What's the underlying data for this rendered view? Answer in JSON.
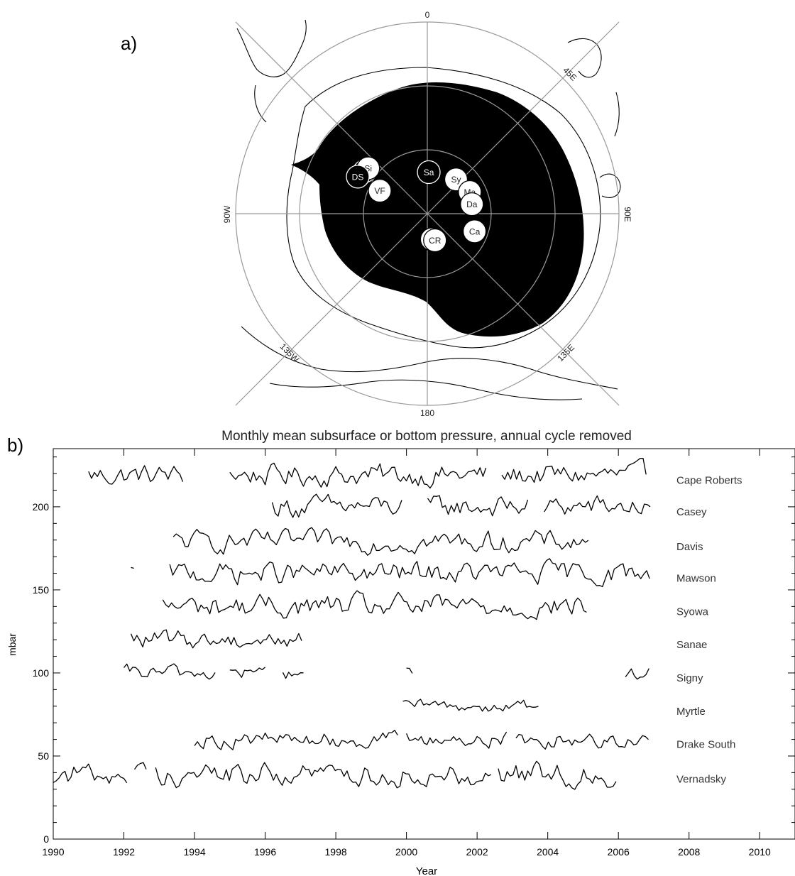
{
  "panel_a": {
    "panel_label": "a)",
    "lon_labels": [
      "0",
      "45E",
      "90E",
      "135E",
      "180",
      "135W",
      "90W"
    ],
    "stations": [
      {
        "abbr": "Myr",
        "lon": -56,
        "lat": -54.4,
        "fill": "black"
      },
      {
        "abbr": "Si",
        "lon": -52.5,
        "lat": -55.0,
        "fill": "white"
      },
      {
        "abbr": "DS",
        "lon": -62,
        "lat": -53.0,
        "fill": "black"
      },
      {
        "abbr": "Sa",
        "lon": 2,
        "lat": -70.5,
        "fill": "black"
      },
      {
        "abbr": "Sy",
        "lon": 40,
        "lat": -69.0,
        "fill": "white"
      },
      {
        "abbr": "Ma",
        "lon": 63,
        "lat": -67.6,
        "fill": "white"
      },
      {
        "abbr": "Da",
        "lon": 78,
        "lat": -68.6,
        "fill": "white"
      },
      {
        "abbr": "Ca",
        "lon": 110.5,
        "lat": -66.3,
        "fill": "white"
      },
      {
        "abbr": "SB",
        "lon": 170,
        "lat": -77.8,
        "fill": "white"
      },
      {
        "abbr": "CR",
        "lon": 164,
        "lat": -77.0,
        "fill": "white"
      },
      {
        "abbr": "VF",
        "lon": -64.2,
        "lat": -65.2,
        "fill": "white"
      }
    ]
  },
  "chart_data": {
    "type": "line",
    "panel_label": "b)",
    "title": "Monthly mean subsurface or bottom pressure, annual cycle removed",
    "xlabel": "Year",
    "ylabel": "mbar",
    "xlim": [
      1990,
      2011
    ],
    "ylim": [
      0,
      235
    ],
    "xticks": [
      1990,
      1992,
      1994,
      1996,
      1998,
      2000,
      2002,
      2004,
      2006,
      2008,
      2010
    ],
    "yticks": [
      0,
      50,
      100,
      150,
      200
    ],
    "grid": false,
    "series": [
      {
        "name": "Cape Roberts",
        "baseline": 219,
        "amplitude": 3.8,
        "segments": [
          [
            1991.0,
            1993.7
          ],
          [
            1995.0,
            2002.3
          ],
          [
            2002.7,
            2006.8
          ]
        ]
      },
      {
        "name": "Casey",
        "baseline": 200,
        "amplitude": 3.8,
        "segments": [
          [
            1996.2,
            1999.9
          ],
          [
            2000.6,
            2003.5
          ],
          [
            2003.9,
            2006.9
          ]
        ]
      },
      {
        "name": "Davis",
        "baseline": 179,
        "amplitude": 3.6,
        "segments": [
          [
            1993.4,
            2005.2
          ]
        ]
      },
      {
        "name": "Mawson",
        "baseline": 160,
        "amplitude": 3.8,
        "segments": [
          [
            1992.2,
            1992.3
          ],
          [
            1993.3,
            2006.9
          ]
        ]
      },
      {
        "name": "Syowa",
        "baseline": 140,
        "amplitude": 4.0,
        "segments": [
          [
            1993.1,
            2005.1
          ]
        ]
      },
      {
        "name": "Sanae",
        "baseline": 120,
        "amplitude": 3.2,
        "segments": [
          [
            1992.2,
            1997.1
          ]
        ]
      },
      {
        "name": "Signy",
        "baseline": 100,
        "amplitude": 2.6,
        "segments": [
          [
            1992.0,
            1994.6
          ],
          [
            1995.0,
            1996.0
          ],
          [
            1996.5,
            1997.1
          ],
          [
            2000.0,
            2000.2
          ],
          [
            2006.2,
            2006.9
          ]
        ]
      },
      {
        "name": "Myrtle",
        "baseline": 80,
        "amplitude": 2.2,
        "segments": [
          [
            1999.9,
            2003.8
          ]
        ]
      },
      {
        "name": "Drake South",
        "baseline": 60,
        "amplitude": 2.8,
        "segments": [
          [
            1994.0,
            1999.8
          ],
          [
            2000.0,
            2002.9
          ],
          [
            2003.1,
            2006.9
          ]
        ]
      },
      {
        "name": "Vernadsky",
        "baseline": 39,
        "amplitude": 4.0,
        "segments": [
          [
            1990.0,
            1992.1
          ],
          [
            1992.3,
            1992.7
          ],
          [
            1992.9,
            2002.4
          ],
          [
            2002.6,
            2006.0
          ]
        ]
      }
    ]
  }
}
